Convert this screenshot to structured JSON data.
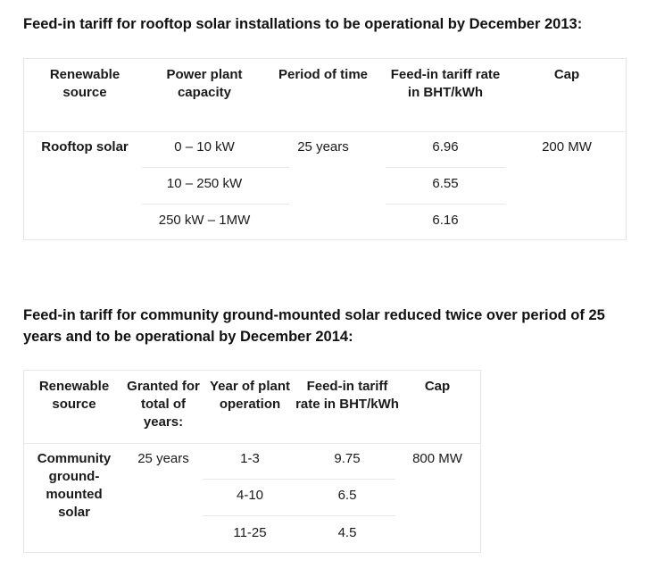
{
  "section1": {
    "heading": "Feed-in tariff for rooftop solar installations to be operational by December 2013:",
    "table": {
      "headers": [
        "Renewable source",
        "Power plant capacity",
        "Period of time",
        "Feed-in tariff rate in BHT/kWh",
        "Cap"
      ],
      "source": "Rooftop solar",
      "period": "25 years",
      "cap": "200 MW",
      "rows": [
        {
          "capacity": "0 – 10 kW",
          "rate": "6.96"
        },
        {
          "capacity": "10 – 250 kW",
          "rate": "6.55"
        },
        {
          "capacity": "250 kW – 1MW",
          "rate": "6.16"
        }
      ]
    }
  },
  "section2": {
    "heading": "Feed-in tariff for community ground-mounted solar reduced twice over period of 25 years and to be operational by December 2014:",
    "table": {
      "headers": [
        "Renewable source",
        "Granted for total of years:",
        "Year of plant operation",
        "Feed-in tariff rate in BHT/kWh",
        "Cap"
      ],
      "source": "Community ground-mounted solar",
      "granted": "25 years",
      "cap": "800 MW",
      "rows": [
        {
          "years": "1-3",
          "rate": "9.75"
        },
        {
          "years": "4-10",
          "rate": "6.5"
        },
        {
          "years": "11-25",
          "rate": "4.5"
        }
      ]
    }
  }
}
